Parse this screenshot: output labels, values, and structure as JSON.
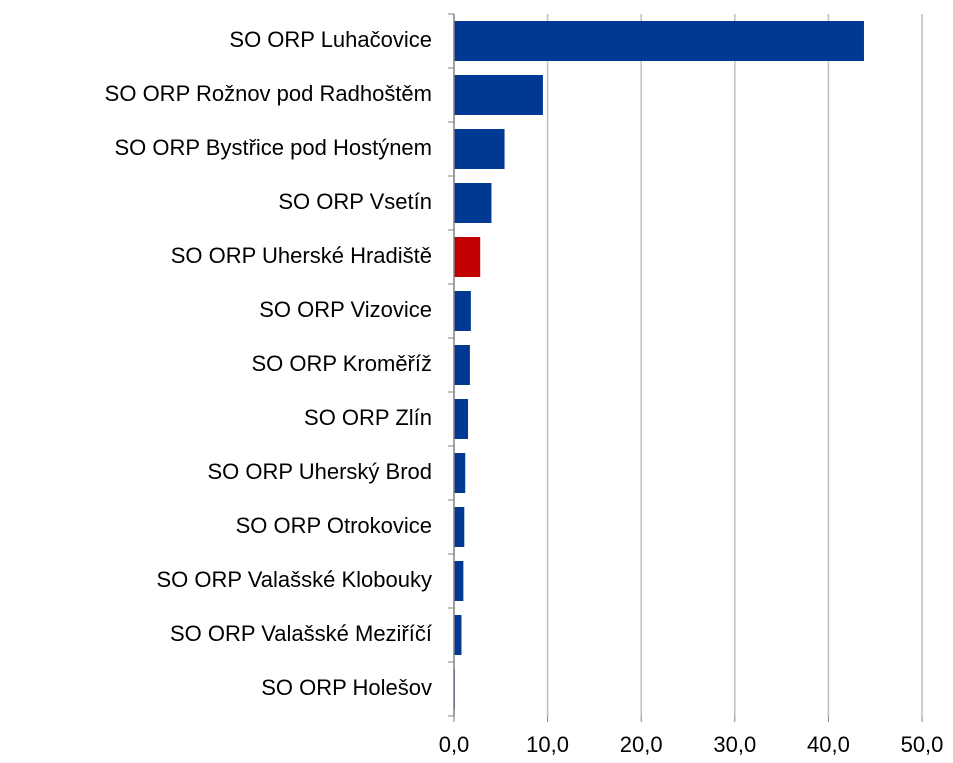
{
  "chart_data": {
    "type": "bar",
    "orientation": "horizontal",
    "categories": [
      "SO ORP Luhačovice",
      "SO ORP Rožnov pod Radhoštěm",
      "SO ORP Bystřice pod Hostýnem",
      "SO ORP Vsetín",
      "SO ORP Uherské Hradiště",
      "SO ORP Vizovice",
      "SO ORP Kroměříž",
      "SO ORP Zlín",
      "SO ORP Uherský Brod",
      "SO ORP Otrokovice",
      "SO ORP Valašské Klobouky",
      "SO ORP Valašské Meziříčí",
      "SO ORP Holešov"
    ],
    "values": [
      43.8,
      9.5,
      5.4,
      4.0,
      2.8,
      1.8,
      1.7,
      1.5,
      1.2,
      1.1,
      1.0,
      0.8,
      0.1
    ],
    "colors": [
      "#003893",
      "#003893",
      "#003893",
      "#003893",
      "#c00000",
      "#003893",
      "#003893",
      "#003893",
      "#003893",
      "#003893",
      "#003893",
      "#003893",
      "#003893"
    ],
    "xlim": [
      0,
      50
    ],
    "xticks": [
      {
        "value": 0,
        "label": "0,0"
      },
      {
        "value": 10,
        "label": "10,0"
      },
      {
        "value": 20,
        "label": "20,0"
      },
      {
        "value": 30,
        "label": "30,0"
      },
      {
        "value": 40,
        "label": "40,0"
      },
      {
        "value": 50,
        "label": "50,0"
      }
    ],
    "grid": true
  }
}
